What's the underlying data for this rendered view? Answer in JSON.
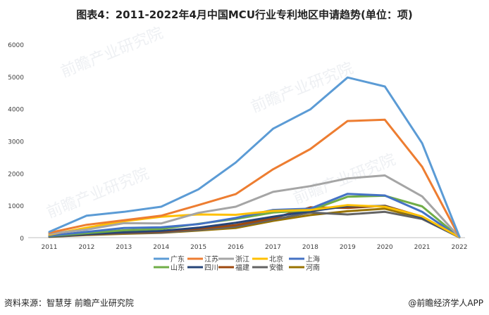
{
  "title": "图表4：2011-2022年4月中国MCU行业专利地区申请趋势(单位：项)",
  "source": "资料来源：智慧芽 前瞻产业研究院",
  "footer_brand": "@前瞻经济学人APP",
  "watermark": "前瞻产业研究院",
  "chart_data": {
    "type": "line",
    "title": "图表4：2011-2022年4月中国MCU行业专利地区申请趋势(单位：项)",
    "xlabel": "",
    "ylabel": "",
    "ylim": [
      0,
      6000
    ],
    "yticks": [
      0,
      1000,
      2000,
      3000,
      4000,
      5000,
      6000
    ],
    "grid": false,
    "legend_position": "bottom",
    "x": [
      "2011",
      "2012",
      "2013",
      "2014",
      "2015",
      "2016",
      "2017",
      "2018",
      "2019",
      "2020",
      "2021",
      "2022"
    ],
    "series": [
      {
        "name": "广东",
        "color": "#5b9bd5",
        "values": [
          180,
          680,
          800,
          960,
          1500,
          2330,
          3380,
          3980,
          4970,
          4690,
          2930,
          30
        ]
      },
      {
        "name": "江苏",
        "color": "#ed7d31",
        "values": [
          150,
          400,
          540,
          680,
          1010,
          1350,
          2120,
          2750,
          3620,
          3660,
          2200,
          20
        ]
      },
      {
        "name": "浙江",
        "color": "#a5a5a5",
        "values": [
          120,
          250,
          450,
          440,
          770,
          960,
          1420,
          1600,
          1840,
          1930,
          1280,
          15
        ]
      },
      {
        "name": "北京",
        "color": "#ffc000",
        "values": [
          90,
          310,
          510,
          650,
          720,
          710,
          830,
          860,
          1010,
          960,
          660,
          10
        ]
      },
      {
        "name": "上海",
        "color": "#4472c4",
        "values": [
          60,
          180,
          300,
          320,
          420,
          610,
          860,
          900,
          1360,
          1310,
          800,
          10
        ]
      },
      {
        "name": "山东",
        "color": "#70ad47",
        "values": [
          50,
          140,
          230,
          270,
          430,
          580,
          780,
          850,
          1270,
          1300,
          970,
          10
        ]
      },
      {
        "name": "四川",
        "color": "#264478",
        "values": [
          40,
          110,
          170,
          210,
          310,
          460,
          650,
          820,
          980,
          980,
          620,
          10
        ]
      },
      {
        "name": "福建",
        "color": "#9e480e",
        "values": [
          40,
          100,
          160,
          190,
          280,
          390,
          600,
          940,
          920,
          990,
          650,
          10
        ]
      },
      {
        "name": "安徽",
        "color": "#636363",
        "values": [
          30,
          90,
          140,
          160,
          240,
          340,
          560,
          780,
          720,
          800,
          580,
          10
        ]
      },
      {
        "name": "河南",
        "color": "#997300",
        "values": [
          25,
          80,
          120,
          150,
          220,
          300,
          520,
          700,
          820,
          900,
          600,
          10
        ]
      }
    ]
  }
}
